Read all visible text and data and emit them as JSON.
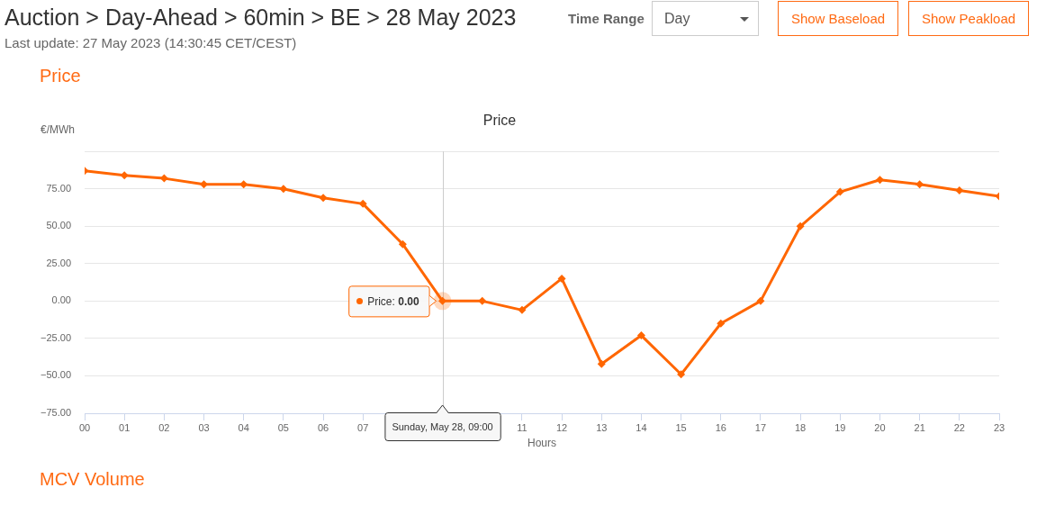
{
  "chart_data": {
    "type": "line",
    "title": "Price",
    "xlabel": "Hours",
    "ylabel": "€/MWh",
    "x": [
      0,
      1,
      2,
      3,
      4,
      5,
      6,
      7,
      8,
      9,
      10,
      11,
      12,
      13,
      14,
      15,
      16,
      17,
      18,
      19,
      20,
      21,
      22,
      23
    ],
    "values": [
      87,
      84,
      82,
      78,
      78,
      75,
      69,
      65,
      38,
      0,
      0,
      -6,
      15,
      -42,
      -23,
      -49,
      -15,
      0,
      50,
      73,
      81,
      78,
      74,
      70
    ],
    "color": "#ff6600",
    "marker": "diamond",
    "line_style": "solid",
    "xlim": [
      0,
      23
    ],
    "xticks": [
      {
        "value": 0,
        "label": "00"
      },
      {
        "value": 1,
        "label": "01"
      },
      {
        "value": 2,
        "label": "02"
      },
      {
        "value": 3,
        "label": "03"
      },
      {
        "value": 4,
        "label": "04"
      },
      {
        "value": 5,
        "label": "05"
      },
      {
        "value": 6,
        "label": "06"
      },
      {
        "value": 7,
        "label": "07"
      },
      {
        "value": 8,
        "label": null
      },
      {
        "value": 9,
        "label": null
      },
      {
        "value": 10,
        "label": null
      },
      {
        "value": 11,
        "label": "11"
      },
      {
        "value": 12,
        "label": "12"
      },
      {
        "value": 13,
        "label": "13"
      },
      {
        "value": 14,
        "label": "14"
      },
      {
        "value": 15,
        "label": "15"
      },
      {
        "value": 16,
        "label": "16"
      },
      {
        "value": 17,
        "label": "17"
      },
      {
        "value": 18,
        "label": "18"
      },
      {
        "value": 19,
        "label": "19"
      },
      {
        "value": 20,
        "label": "20"
      },
      {
        "value": 21,
        "label": "21"
      },
      {
        "value": 22,
        "label": "22"
      },
      {
        "value": 23,
        "label": "23"
      }
    ],
    "ylim": [
      -75,
      100
    ],
    "yticks": [
      {
        "value": -75,
        "label": "−75.00"
      },
      {
        "value": -50,
        "label": "−50.00"
      },
      {
        "value": -25,
        "label": "−25.00"
      },
      {
        "value": 0,
        "label": "0.00"
      },
      {
        "value": 25,
        "label": "25.00"
      },
      {
        "value": 50,
        "label": "50.00"
      },
      {
        "value": 75,
        "label": "75.00"
      },
      {
        "value": 100,
        "label": null
      }
    ],
    "grid": "y",
    "legend": false,
    "ref_lines": [
      {
        "axis": "x",
        "value": 9,
        "label": "Sunday, May 28, 09:00",
        "color": "#cccccc"
      }
    ],
    "annotations": [
      "Auction > Day-Ahead > 60min > BE > 28 May 2023",
      "Time Range",
      "Day",
      "Show Baseload",
      "Show Peakload",
      "Last update: 27 May 2023 (14:30:45 CET/CEST)",
      "Price",
      "MCV Volume",
      {
        "text": "Price: 0.00",
        "x": 9,
        "y": 0
      }
    ]
  }
}
